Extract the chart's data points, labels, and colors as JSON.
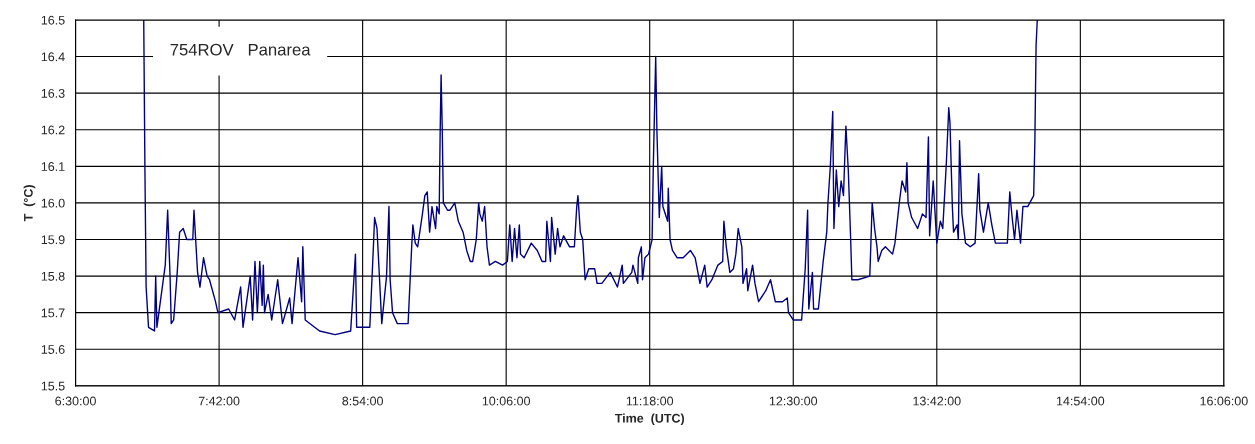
{
  "chart_data": {
    "type": "line",
    "xlabel": "Time  (UTC)",
    "ylabel": "T  (°C)",
    "annotations": [
      "754ROV   Panarea"
    ],
    "color": "#000080",
    "x": [
      7.07,
      7.08,
      7.09,
      7.11,
      7.16,
      7.17,
      7.18,
      7.25,
      7.27,
      7.29,
      7.3,
      7.32,
      7.35,
      7.37,
      7.4,
      7.43,
      7.48,
      7.49,
      7.52,
      7.54,
      7.57,
      7.6,
      7.62,
      7.67,
      7.69,
      7.78,
      7.83,
      7.88,
      7.9,
      7.96,
      7.98,
      8.0,
      8.02,
      8.04,
      8.06,
      8.07,
      8.08,
      8.11,
      8.14,
      8.19,
      8.23,
      8.29,
      8.31,
      8.36,
      8.39,
      8.4,
      8.42,
      8.54,
      8.67,
      8.8,
      8.84,
      8.85,
      8.96,
      8.99,
      9.0,
      9.02,
      9.04,
      9.06,
      9.1,
      9.12,
      9.13,
      9.15,
      9.19,
      9.28,
      9.31,
      9.32,
      9.34,
      9.36,
      9.4,
      9.42,
      9.44,
      9.46,
      9.48,
      9.51,
      9.52,
      9.54,
      9.548,
      9.556,
      9.565,
      9.575,
      9.61,
      9.63,
      9.67,
      9.7,
      9.74,
      9.77,
      9.8,
      9.82,
      9.85,
      9.87,
      9.88,
      9.9,
      9.92,
      9.94,
      9.96,
      10.01,
      10.07,
      10.11,
      10.13,
      10.15,
      10.17,
      10.19,
      10.21,
      10.22,
      10.25,
      10.31,
      10.36,
      10.4,
      10.43,
      10.44,
      10.47,
      10.48,
      10.51,
      10.53,
      10.55,
      10.58,
      10.63,
      10.67,
      10.69,
      10.7,
      10.72,
      10.74,
      10.76,
      10.79,
      10.84,
      10.86,
      10.9,
      10.97,
      11.03,
      11.07,
      11.08,
      11.15,
      11.16,
      11.2,
      11.205,
      11.23,
      11.24,
      11.26,
      11.29,
      11.32,
      11.33,
      11.35,
      11.36,
      11.38,
      11.4,
      11.41,
      11.45,
      11.455,
      11.47,
      11.49,
      11.53,
      11.58,
      11.64,
      11.68,
      11.72,
      11.76,
      11.78,
      11.82,
      11.87,
      11.91,
      11.92,
      11.94,
      11.97,
      12.0,
      12.02,
      12.04,
      12.07,
      12.08,
      12.11,
      12.12,
      12.16,
      12.18,
      12.21,
      12.27,
      12.31,
      12.35,
      12.41,
      12.45,
      12.46,
      12.5,
      12.57,
      12.6,
      12.62,
      12.63,
      12.66,
      12.67,
      12.71,
      12.75,
      12.78,
      12.79,
      12.81,
      12.83,
      12.84,
      12.86,
      12.88,
      12.9,
      12.92,
      12.94,
      12.96,
      12.98,
      12.99,
      13.04,
      13.14,
      13.16,
      13.18,
      13.2,
      13.21,
      13.24,
      13.27,
      13.33,
      13.35,
      13.39,
      13.41,
      13.44,
      13.45,
      13.46,
      13.49,
      13.54,
      13.58,
      13.61,
      13.63,
      13.64,
      13.67,
      13.7,
      13.73,
      13.75,
      13.78,
      13.8,
      13.81,
      13.83,
      13.84,
      13.87,
      13.88,
      13.89,
      13.91,
      13.94,
      13.98,
      14.02,
      14.05,
      14.06,
      14.09,
      14.13,
      14.16,
      14.19,
      14.25,
      14.29,
      14.31,
      14.33,
      14.35,
      14.37,
      14.4,
      14.42,
      14.46,
      14.51,
      14.52,
      14.53,
      14.54
    ],
    "values": [
      16.5,
      16.09,
      15.77,
      15.66,
      15.65,
      15.8,
      15.66,
      15.83,
      15.98,
      15.8,
      15.67,
      15.68,
      15.81,
      15.92,
      15.93,
      15.9,
      15.9,
      15.98,
      15.81,
      15.77,
      15.85,
      15.8,
      15.79,
      15.73,
      15.7,
      15.71,
      15.68,
      15.77,
      15.66,
      15.8,
      15.68,
      15.84,
      15.7,
      15.84,
      15.72,
      15.83,
      15.7,
      15.75,
      15.68,
      15.79,
      15.67,
      15.74,
      15.67,
      15.85,
      15.73,
      15.88,
      15.68,
      15.65,
      15.64,
      15.65,
      15.86,
      15.66,
      15.66,
      15.88,
      15.96,
      15.93,
      15.8,
      15.67,
      15.8,
      15.99,
      15.79,
      15.7,
      15.67,
      15.67,
      15.88,
      15.94,
      15.89,
      15.88,
      15.97,
      16.02,
      16.03,
      15.92,
      15.99,
      15.93,
      15.99,
      15.97,
      16.19,
      16.35,
      16.21,
      16.0,
      15.98,
      15.98,
      16.0,
      15.95,
      15.92,
      15.87,
      15.84,
      15.84,
      15.9,
      16.0,
      15.97,
      15.95,
      15.99,
      15.88,
      15.83,
      15.84,
      15.83,
      15.84,
      15.94,
      15.84,
      15.93,
      15.85,
      15.94,
      15.86,
      15.85,
      15.89,
      15.87,
      15.84,
      15.84,
      15.95,
      15.84,
      15.96,
      15.86,
      15.93,
      15.88,
      15.91,
      15.88,
      15.88,
      15.99,
      16.02,
      15.92,
      15.9,
      15.79,
      15.82,
      15.82,
      15.78,
      15.78,
      15.81,
      15.77,
      15.83,
      15.78,
      15.81,
      15.83,
      15.78,
      15.85,
      15.88,
      15.79,
      15.85,
      15.86,
      15.9,
      16.1,
      16.4,
      16.2,
      15.96,
      16.1,
      15.99,
      15.95,
      16.04,
      15.9,
      15.87,
      15.85,
      15.85,
      15.87,
      15.85,
      15.78,
      15.83,
      15.77,
      15.79,
      15.83,
      15.84,
      15.95,
      15.88,
      15.81,
      15.82,
      15.86,
      15.93,
      15.88,
      15.78,
      15.82,
      15.76,
      15.83,
      15.78,
      15.73,
      15.76,
      15.79,
      15.73,
      15.73,
      15.74,
      15.7,
      15.68,
      15.68,
      15.82,
      15.98,
      15.71,
      15.81,
      15.71,
      15.71,
      15.84,
      15.92,
      16.0,
      16.1,
      16.25,
      15.93,
      16.09,
      15.99,
      16.06,
      16.02,
      16.21,
      16.09,
      15.9,
      15.79,
      15.79,
      15.8,
      16.0,
      15.93,
      15.88,
      15.84,
      15.87,
      15.88,
      15.86,
      15.89,
      16.01,
      16.06,
      16.03,
      16.11,
      16.0,
      15.96,
      15.93,
      15.97,
      15.96,
      16.18,
      15.91,
      16.06,
      15.89,
      15.95,
      15.93,
      16.11,
      16.26,
      16.22,
      15.99,
      15.92,
      15.94,
      15.9,
      16.17,
      15.97,
      15.89,
      15.88,
      15.89,
      16.08,
      15.98,
      15.92,
      16.0,
      15.94,
      15.89,
      15.89,
      15.89,
      16.03,
      15.96,
      15.9,
      15.98,
      15.89,
      15.99,
      15.99,
      16.02,
      16.17,
      16.43,
      16.5
    ],
    "xlim": [
      6.5,
      16.1
    ],
    "xticks": [
      {
        "value": 6.5,
        "label": "6:30:00"
      },
      {
        "value": 7.7,
        "label": "7:42:00"
      },
      {
        "value": 8.9,
        "label": "8:54:00"
      },
      {
        "value": 10.1,
        "label": "10:06:00"
      },
      {
        "value": 11.3,
        "label": "11:18:00"
      },
      {
        "value": 12.5,
        "label": "12:30:00"
      },
      {
        "value": 13.7,
        "label": "13:42:00"
      },
      {
        "value": 14.9,
        "label": "14:54:00"
      },
      {
        "value": 16.1,
        "label": "16:06:00"
      }
    ],
    "ylim": [
      15.5,
      16.5
    ],
    "yticks": [
      {
        "value": 15.5,
        "label": "15.5"
      },
      {
        "value": 15.6,
        "label": "15.6"
      },
      {
        "value": 15.7,
        "label": "15.7"
      },
      {
        "value": 15.8,
        "label": "15.8"
      },
      {
        "value": 15.9,
        "label": "15.9"
      },
      {
        "value": 16.0,
        "label": "16.0"
      },
      {
        "value": 16.1,
        "label": "16.1"
      },
      {
        "value": 16.2,
        "label": "16.2"
      },
      {
        "value": 16.3,
        "label": "16.3"
      },
      {
        "value": 16.4,
        "label": "16.4"
      },
      {
        "value": 16.5,
        "label": "16.5"
      }
    ],
    "grid": true,
    "legend": false
  }
}
